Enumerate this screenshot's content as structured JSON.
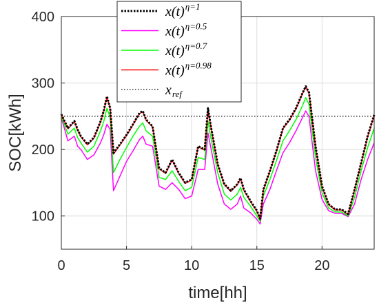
{
  "chart_data": {
    "type": "line",
    "xlabel": "time[hh]",
    "ylabel": "SOC[kWh]",
    "xlim": [
      0,
      24
    ],
    "ylim": [
      50,
      400
    ],
    "xticks": [
      0,
      5,
      10,
      15,
      20
    ],
    "yticks": [
      100,
      200,
      300,
      400
    ],
    "grid": true,
    "legend_position": "top-center",
    "x": [
      0,
      0.5,
      1,
      1.25,
      1.5,
      2,
      2.5,
      3,
      3.25,
      3.5,
      3.75,
      4,
      4.5,
      5,
      5.5,
      6,
      6.25,
      6.5,
      7,
      7.5,
      8,
      8.5,
      9,
      9.5,
      10,
      10.5,
      11,
      11.25,
      11.5,
      12,
      12.5,
      13,
      13.5,
      13.75,
      14,
      14.5,
      15,
      15.25,
      15.5,
      16,
      16.5,
      17,
      17.5,
      18,
      18.5,
      18.75,
      19,
      19.5,
      20,
      20.5,
      21,
      21.5,
      22,
      22.5,
      23,
      23.5,
      24
    ],
    "series": [
      {
        "name": "x(t)^{η=1}",
        "label": "x(t)",
        "superscript": "η=1",
        "color": "#000000",
        "style": "dotted",
        "values": [
          253,
          232,
          243,
          230,
          220,
          208,
          218,
          242,
          258,
          280,
          262,
          195,
          208,
          222,
          238,
          255,
          258,
          245,
          235,
          172,
          165,
          185,
          165,
          150,
          155,
          205,
          200,
          262,
          232,
          178,
          148,
          138,
          148,
          157,
          140,
          123,
          108,
          96,
          140,
          168,
          198,
          232,
          245,
          262,
          285,
          295,
          286,
          205,
          145,
          118,
          110,
          110,
          103,
          140,
          180,
          220,
          252
        ]
      },
      {
        "name": "x(t)^{η=0.5}",
        "label": "x(t)",
        "superscript": "η=0.5",
        "color": "#ff00ff",
        "style": "solid",
        "values": [
          248,
          213,
          220,
          205,
          200,
          185,
          192,
          210,
          222,
          238,
          230,
          138,
          160,
          182,
          198,
          215,
          220,
          208,
          205,
          145,
          140,
          150,
          140,
          126,
          130,
          170,
          170,
          225,
          200,
          148,
          118,
          110,
          118,
          130,
          112,
          105,
          95,
          88,
          118,
          140,
          168,
          195,
          210,
          228,
          248,
          258,
          250,
          168,
          125,
          108,
          104,
          104,
          99,
          118,
          155,
          185,
          210
        ]
      },
      {
        "name": "x(t)^{η=0.7}",
        "label": "x(t)",
        "superscript": "η=0.7",
        "color": "#00ff00",
        "style": "solid",
        "values": [
          250,
          223,
          232,
          218,
          210,
          196,
          205,
          228,
          242,
          262,
          248,
          165,
          185,
          203,
          220,
          235,
          240,
          228,
          220,
          158,
          155,
          168,
          152,
          138,
          143,
          188,
          185,
          243,
          215,
          165,
          133,
          124,
          133,
          143,
          128,
          115,
          100,
          92,
          130,
          155,
          183,
          213,
          228,
          245,
          266,
          278,
          268,
          188,
          135,
          112,
          106,
          106,
          100,
          128,
          168,
          203,
          232
        ]
      },
      {
        "name": "x(t)^{η=0.98}",
        "label": "x(t)",
        "superscript": "η=0.98",
        "color": "#ff0000",
        "style": "solid",
        "values": [
          253,
          231,
          242,
          229,
          219,
          207,
          217,
          241,
          257,
          279,
          261,
          193,
          207,
          221,
          237,
          254,
          257,
          244,
          234,
          171,
          164,
          184,
          164,
          149,
          154,
          204,
          199,
          261,
          231,
          177,
          147,
          137,
          147,
          156,
          139,
          122,
          107,
          95,
          139,
          167,
          197,
          231,
          244,
          261,
          284,
          294,
          285,
          204,
          144,
          117,
          109,
          109,
          102,
          139,
          179,
          219,
          251
        ]
      },
      {
        "name": "x_ref",
        "label": "x",
        "subscript": "ref",
        "color": "#000000",
        "style": "thin-dotted",
        "values": [
          250,
          250,
          250,
          250,
          250,
          250,
          250,
          250,
          250,
          250,
          250,
          250,
          250,
          250,
          250,
          250,
          250,
          250,
          250,
          250,
          250,
          250,
          250,
          250,
          250,
          250,
          250,
          250,
          250,
          250,
          250,
          250,
          250,
          250,
          250,
          250,
          250,
          250,
          250,
          250,
          250,
          250,
          250,
          250,
          250,
          250,
          250,
          250,
          250,
          250,
          250,
          250,
          250,
          250,
          250,
          250,
          250
        ]
      }
    ]
  }
}
